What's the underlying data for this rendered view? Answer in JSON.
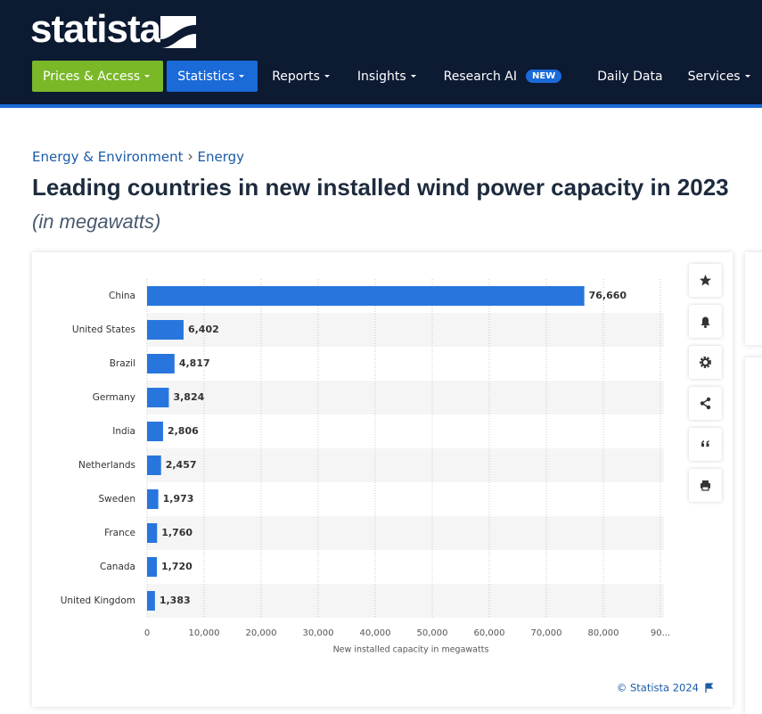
{
  "header": {
    "logo": "statista",
    "nav": [
      {
        "label": "Prices & Access"
      },
      {
        "label": "Statistics"
      },
      {
        "label": "Reports"
      },
      {
        "label": "Insights"
      },
      {
        "label": "Research AI",
        "badge": "NEW"
      },
      {
        "label": "Daily Data"
      },
      {
        "label": "Services"
      }
    ]
  },
  "breadcrumb": [
    "Energy & Environment",
    "Energy"
  ],
  "chart_data": {
    "type": "hbar",
    "title": "Leading countries in new installed wind power capacity in 2023",
    "subtitle": "(in megawatts)",
    "categories": [
      "China",
      "United States",
      "Brazil",
      "Germany",
      "India",
      "Netherlands",
      "Sweden",
      "France",
      "Canada",
      "United Kingdom"
    ],
    "values": [
      76660,
      6402,
      4817,
      3824,
      2806,
      2457,
      1973,
      1760,
      1720,
      1383
    ],
    "value_labels": [
      "76,660",
      "6,402",
      "4,817",
      "3,824",
      "2,806",
      "2,457",
      "1,973",
      "1,760",
      "1,720",
      "1,383"
    ],
    "color": "#2876dd",
    "xlabel": "New installed capacity in megawatts",
    "xlim": [
      0,
      90000
    ],
    "xticks": [
      0,
      {
        "value": 10000,
        "label": "10,000"
      },
      {
        "value": 20000,
        "label": "20,000"
      },
      {
        "value": 30000,
        "label": "30,000"
      },
      {
        "value": 40000,
        "label": "40,000"
      },
      {
        "value": 50000,
        "label": "50,000"
      },
      {
        "value": 60000,
        "label": "60,000"
      },
      {
        "value": 70000,
        "label": "70,000"
      },
      {
        "value": 80000,
        "label": "80,000"
      },
      {
        "value": 90000,
        "label": "90..."
      }
    ],
    "grid": true,
    "source": "© Statista 2024"
  }
}
